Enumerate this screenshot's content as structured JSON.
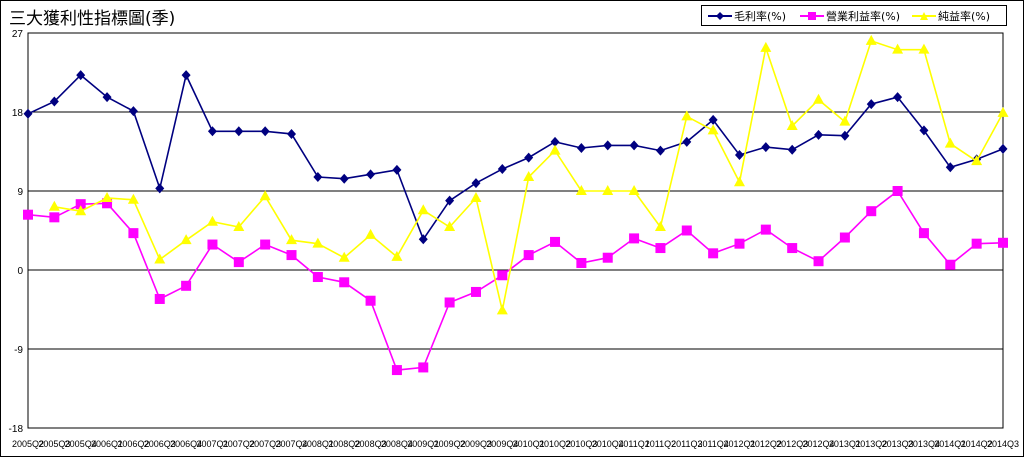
{
  "chart_data": {
    "type": "line",
    "title": "三大獲利性指標圖(季)",
    "xlabel": "",
    "ylabel": "",
    "ylim": [
      -18,
      27
    ],
    "y_ticks": [
      "27",
      "18",
      "9",
      "0",
      "-9",
      "-18"
    ],
    "grid": true,
    "legend_position": "top-right",
    "categories": [
      "2005Q2",
      "2005Q3",
      "2005Q4",
      "2006Q1",
      "2006Q2",
      "2006Q3",
      "2006Q4",
      "2007Q1",
      "2007Q2",
      "2007Q3",
      "2007Q4",
      "2008Q1",
      "2008Q2",
      "2008Q3",
      "2008Q4",
      "2009Q1",
      "2009Q2",
      "2009Q3",
      "2009Q4",
      "2010Q1",
      "2010Q2",
      "2010Q3",
      "2010Q4",
      "2011Q1",
      "2011Q2",
      "2011Q3",
      "2011Q4",
      "2012Q1",
      "2012Q2",
      "2012Q3",
      "2012Q4",
      "2013Q1",
      "2013Q2",
      "2013Q3",
      "2013Q4",
      "2014Q1",
      "2014Q2",
      "2014Q3"
    ],
    "series": [
      {
        "name": "毛利率(%)",
        "color": "#000080",
        "marker": "diamond",
        "values": [
          17.8,
          19.2,
          22.2,
          19.7,
          18.1,
          9.3,
          22.2,
          15.8,
          15.8,
          15.8,
          15.5,
          10.6,
          10.4,
          10.9,
          11.4,
          3.5,
          7.9,
          9.9,
          11.5,
          12.8,
          14.6,
          13.9,
          14.2,
          14.2,
          13.6,
          14.6,
          17.1,
          13.1,
          14.0,
          13.7,
          15.4,
          15.3,
          18.9,
          19.7,
          15.9,
          11.7,
          12.6,
          13.8
        ]
      },
      {
        "name": "營業利益率(%)",
        "color": "#ff00ff",
        "marker": "square",
        "values": [
          6.3,
          6.0,
          7.5,
          7.6,
          4.2,
          -3.3,
          -1.8,
          2.9,
          0.9,
          2.9,
          1.7,
          -0.8,
          -1.4,
          -3.5,
          -11.4,
          -11.1,
          -3.7,
          -2.5,
          -0.6,
          1.7,
          3.2,
          0.8,
          1.4,
          3.6,
          2.5,
          4.5,
          1.9,
          3.0,
          4.6,
          2.5,
          1.0,
          3.7,
          6.7,
          9.0,
          4.2,
          0.6,
          3.0,
          3.1
        ]
      },
      {
        "name": "純益率(%)",
        "color": "#ffff00",
        "marker": "triangle",
        "values": [
          null,
          7.2,
          6.7,
          8.2,
          8.0,
          1.2,
          3.4,
          5.5,
          4.9,
          8.4,
          3.4,
          3.0,
          1.4,
          4.0,
          1.5,
          6.8,
          4.9,
          8.2,
          -4.6,
          10.6,
          13.6,
          9.0,
          9.0,
          9.0,
          4.9,
          17.5,
          15.9,
          10.0,
          25.3,
          16.4,
          19.4,
          16.9,
          26.1,
          25.1,
          25.1,
          14.4,
          12.4,
          17.9
        ]
      }
    ]
  }
}
